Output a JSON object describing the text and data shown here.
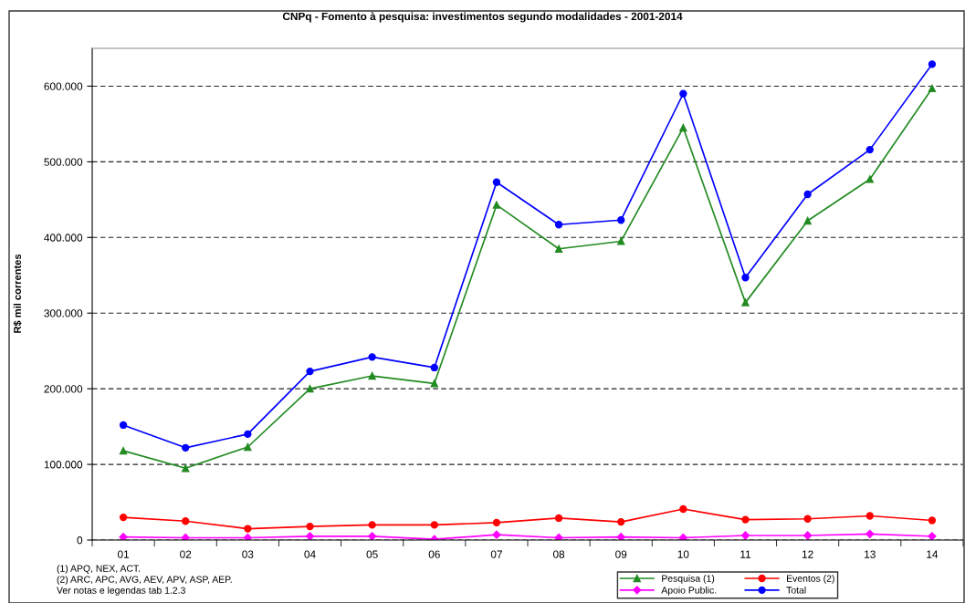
{
  "chart_data": {
    "type": "line",
    "title": "CNPq - Fomento à pesquisa: investimentos segundo modalidades - 2001-2014",
    "ylabel": "R$ mil correntes",
    "categories": [
      "01",
      "02",
      "03",
      "04",
      "05",
      "06",
      "07",
      "08",
      "09",
      "10",
      "11",
      "12",
      "13",
      "14"
    ],
    "series": [
      {
        "name": "Pesquisa (1)",
        "color": "#228b22",
        "marker": "triangle",
        "values": [
          118000,
          95000,
          123000,
          200000,
          217000,
          207000,
          443000,
          385000,
          395000,
          545000,
          314000,
          422000,
          477000,
          597000
        ]
      },
      {
        "name": "Eventos (2)",
        "color": "#ff0000",
        "marker": "circle",
        "values": [
          30000,
          25000,
          15000,
          18000,
          20000,
          20000,
          23000,
          29000,
          24000,
          41000,
          27000,
          28000,
          32000,
          26000
        ]
      },
      {
        "name": "Apoio Public.",
        "color": "#ff00ff",
        "marker": "diamond",
        "values": [
          4000,
          3000,
          3000,
          5000,
          5000,
          1000,
          7000,
          3000,
          4000,
          3000,
          6000,
          6000,
          8000,
          5000
        ]
      },
      {
        "name": "Total",
        "color": "#0000ff",
        "marker": "circle",
        "values": [
          152000,
          122000,
          140000,
          223000,
          242000,
          228000,
          473000,
          417000,
          423000,
          590000,
          347000,
          457000,
          516000,
          629000
        ]
      }
    ],
    "ylim": [
      0,
      650000
    ],
    "yticks": [
      0,
      {
        "value": 100000,
        "label": "100.000"
      },
      {
        "value": 200000,
        "label": "200.000"
      },
      {
        "value": 300000,
        "label": "300.000"
      },
      {
        "value": 400000,
        "label": "400.000"
      },
      {
        "value": 500000,
        "label": "500.000"
      },
      {
        "value": 600000,
        "label": "600.000"
      }
    ],
    "grid": "y",
    "legend": "bottom",
    "line_style": "solid",
    "annotations": [
      "(1) APQ, NEX, ACT.",
      "(2) ARC, APC, AVG, AEV, APV, ASP, AEP.",
      "Ver notas e legendas tab 1.2.3"
    ]
  }
}
